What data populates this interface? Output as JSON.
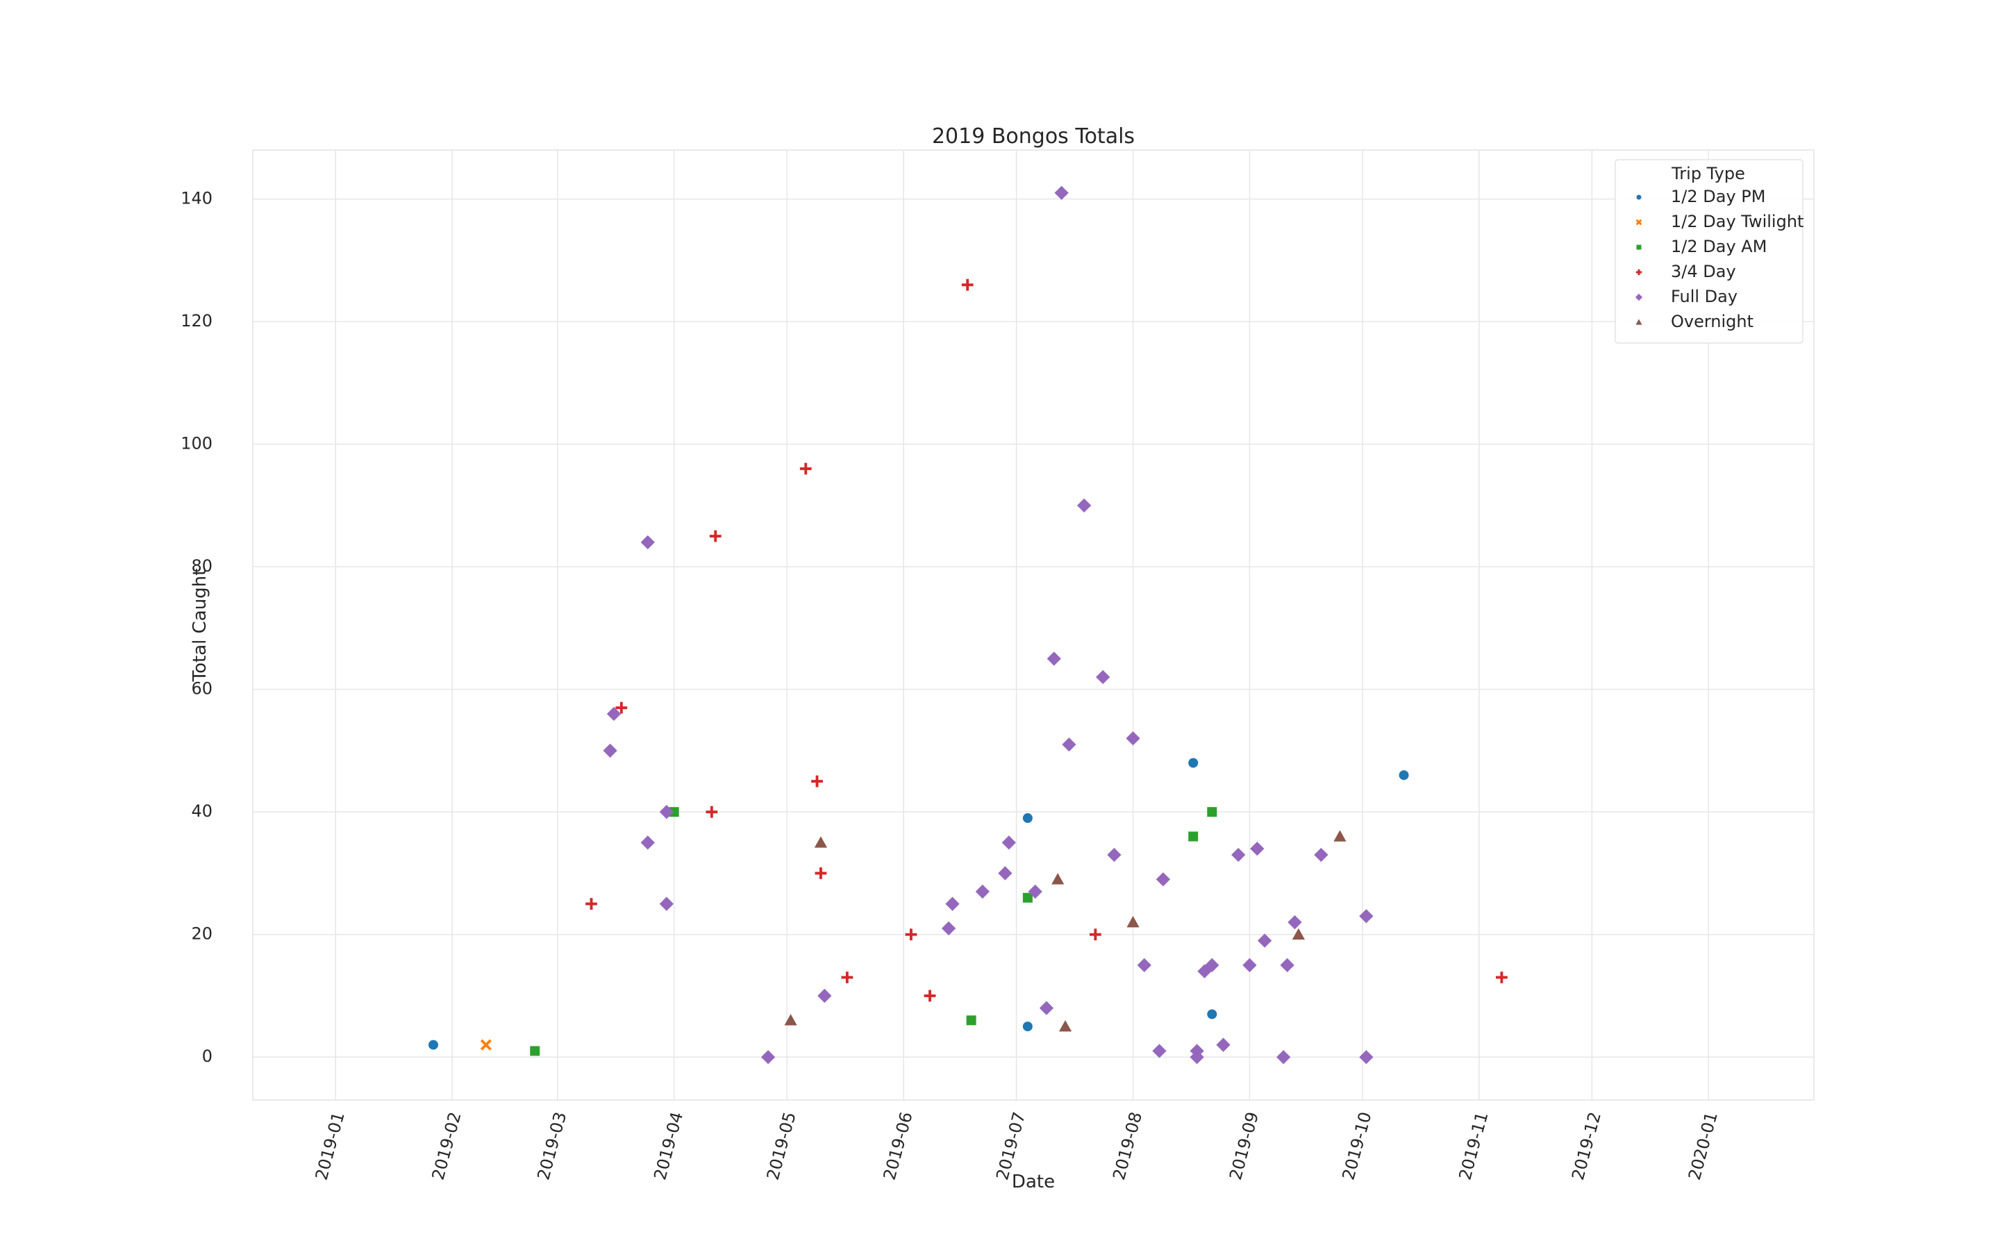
{
  "chart_data": {
    "type": "scatter",
    "title": "2019 Bongos Totals",
    "xlabel": "Date",
    "ylabel": "Total Caught",
    "x_type": "date",
    "xlim": [
      "2018-12-10",
      "2020-01-29"
    ],
    "ylim": [
      -7,
      148
    ],
    "x_ticks": [
      "2019-01",
      "2019-02",
      "2019-03",
      "2019-04",
      "2019-05",
      "2019-06",
      "2019-07",
      "2019-08",
      "2019-09",
      "2019-10",
      "2019-11",
      "2019-12",
      "2020-01"
    ],
    "y_ticks": [
      0,
      20,
      40,
      60,
      80,
      100,
      120,
      140
    ],
    "grid": true,
    "legend": {
      "title": "Trip Type",
      "position": "top-right"
    },
    "series": [
      {
        "name": "1/2 Day PM",
        "marker": "circle",
        "color": "#1f77b4",
        "points": [
          {
            "x": "2019-01-27",
            "y": 2
          },
          {
            "x": "2019-07-04",
            "y": 39
          },
          {
            "x": "2019-07-04",
            "y": 5
          },
          {
            "x": "2019-08-17",
            "y": 48
          },
          {
            "x": "2019-08-22",
            "y": 7
          },
          {
            "x": "2019-10-12",
            "y": 46
          }
        ]
      },
      {
        "name": "1/2 Day Twilight",
        "marker": "x",
        "color": "#ff7f0e",
        "points": [
          {
            "x": "2019-02-10",
            "y": 2
          }
        ]
      },
      {
        "name": "1/2 Day AM",
        "marker": "square",
        "color": "#2ca02c",
        "points": [
          {
            "x": "2019-02-23",
            "y": 1
          },
          {
            "x": "2019-04-01",
            "y": 40
          },
          {
            "x": "2019-06-19",
            "y": 6
          },
          {
            "x": "2019-07-04",
            "y": 26
          },
          {
            "x": "2019-08-17",
            "y": 36
          },
          {
            "x": "2019-08-22",
            "y": 40
          }
        ]
      },
      {
        "name": "3/4 Day",
        "marker": "plus",
        "color": "#d62728",
        "points": [
          {
            "x": "2019-03-10",
            "y": 25
          },
          {
            "x": "2019-03-18",
            "y": 57
          },
          {
            "x": "2019-04-11",
            "y": 40
          },
          {
            "x": "2019-04-12",
            "y": 85
          },
          {
            "x": "2019-05-06",
            "y": 96
          },
          {
            "x": "2019-05-09",
            "y": 45
          },
          {
            "x": "2019-05-10",
            "y": 30
          },
          {
            "x": "2019-05-17",
            "y": 13
          },
          {
            "x": "2019-06-03",
            "y": 20
          },
          {
            "x": "2019-06-08",
            "y": 10
          },
          {
            "x": "2019-06-18",
            "y": 126
          },
          {
            "x": "2019-07-22",
            "y": 20
          },
          {
            "x": "2019-11-07",
            "y": 13
          }
        ]
      },
      {
        "name": "Full Day",
        "marker": "diamond",
        "color": "#9467bd",
        "points": [
          {
            "x": "2019-03-15",
            "y": 50
          },
          {
            "x": "2019-03-16",
            "y": 56
          },
          {
            "x": "2019-03-25",
            "y": 84
          },
          {
            "x": "2019-03-25",
            "y": 35
          },
          {
            "x": "2019-03-30",
            "y": 25
          },
          {
            "x": "2019-03-30",
            "y": 40
          },
          {
            "x": "2019-04-26",
            "y": 0
          },
          {
            "x": "2019-05-11",
            "y": 10
          },
          {
            "x": "2019-06-13",
            "y": 21
          },
          {
            "x": "2019-06-14",
            "y": 25
          },
          {
            "x": "2019-06-22",
            "y": 27
          },
          {
            "x": "2019-06-28",
            "y": 30
          },
          {
            "x": "2019-06-29",
            "y": 35
          },
          {
            "x": "2019-07-06",
            "y": 27
          },
          {
            "x": "2019-07-09",
            "y": 8
          },
          {
            "x": "2019-07-11",
            "y": 65
          },
          {
            "x": "2019-07-13",
            "y": 141
          },
          {
            "x": "2019-07-15",
            "y": 51
          },
          {
            "x": "2019-07-19",
            "y": 90
          },
          {
            "x": "2019-07-24",
            "y": 62
          },
          {
            "x": "2019-07-27",
            "y": 33
          },
          {
            "x": "2019-08-01",
            "y": 52
          },
          {
            "x": "2019-08-04",
            "y": 15
          },
          {
            "x": "2019-08-08",
            "y": 1
          },
          {
            "x": "2019-08-09",
            "y": 29
          },
          {
            "x": "2019-08-18",
            "y": 1
          },
          {
            "x": "2019-08-18",
            "y": 0
          },
          {
            "x": "2019-08-20",
            "y": 14
          },
          {
            "x": "2019-08-22",
            "y": 15
          },
          {
            "x": "2019-08-25",
            "y": 2
          },
          {
            "x": "2019-08-29",
            "y": 33
          },
          {
            "x": "2019-09-01",
            "y": 15
          },
          {
            "x": "2019-09-03",
            "y": 34
          },
          {
            "x": "2019-09-05",
            "y": 19
          },
          {
            "x": "2019-09-10",
            "y": 0
          },
          {
            "x": "2019-09-11",
            "y": 15
          },
          {
            "x": "2019-09-13",
            "y": 22
          },
          {
            "x": "2019-09-20",
            "y": 33
          },
          {
            "x": "2019-10-02",
            "y": 23
          },
          {
            "x": "2019-10-02",
            "y": 0
          }
        ]
      },
      {
        "name": "Overnight",
        "marker": "triangle",
        "color": "#8c564b",
        "points": [
          {
            "x": "2019-05-02",
            "y": 6
          },
          {
            "x": "2019-05-10",
            "y": 35
          },
          {
            "x": "2019-07-12",
            "y": 29
          },
          {
            "x": "2019-07-14",
            "y": 5
          },
          {
            "x": "2019-08-01",
            "y": 22
          },
          {
            "x": "2019-09-14",
            "y": 20
          },
          {
            "x": "2019-09-25",
            "y": 36
          }
        ]
      }
    ]
  }
}
